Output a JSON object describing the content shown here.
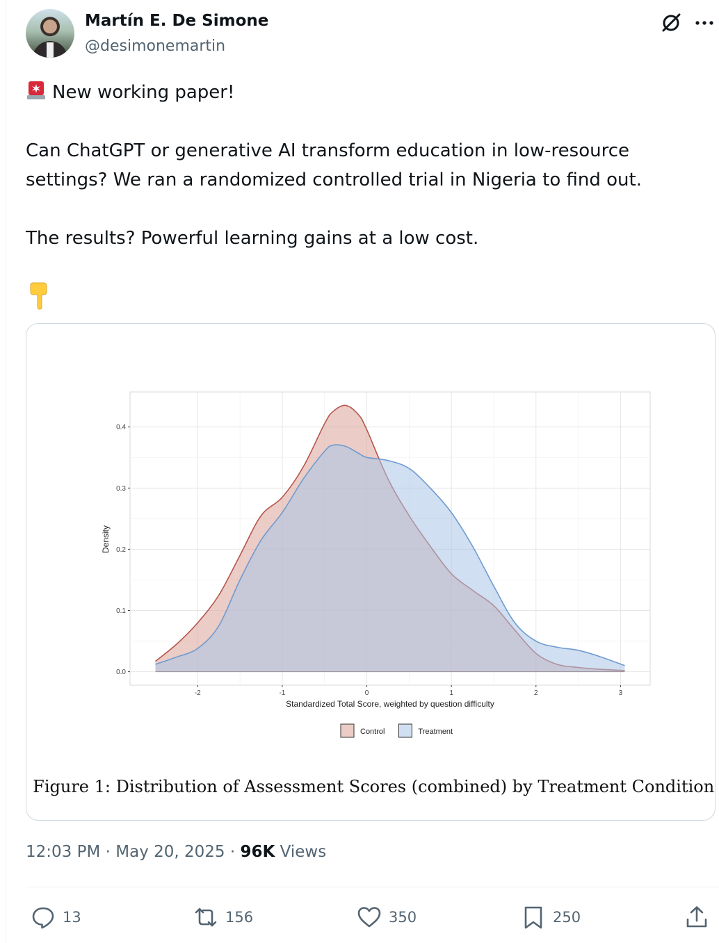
{
  "author": {
    "name": "Martín E. De Simone",
    "handle": "@desimonemartin"
  },
  "tweet": {
    "lines": [
      "New working paper!",
      "",
      "Can ChatGPT or generative AI transform education in low-resource",
      "settings? We ran a randomized controlled trial in Nigeria to find out.",
      "",
      "The results? Powerful learning gains at a low cost."
    ],
    "emojis": [
      "siren-emoji",
      "pointing-down-emoji"
    ]
  },
  "figure": {
    "caption": "Figure 1: Distribution of Assessment Scores (combined) by Treatment Condition."
  },
  "chart_data": {
    "type": "area",
    "xlabel": "Standardized Total Score, weighted by question difficulty",
    "ylabel": "Density",
    "xlim": [
      -2.8,
      3.35
    ],
    "ylim": [
      -0.022,
      0.457
    ],
    "xticks": [
      -2,
      -1,
      0,
      1,
      2,
      3
    ],
    "yticks": [
      0.0,
      0.1,
      0.2,
      0.3,
      0.4
    ],
    "xtick_labels": [
      "-2",
      "-1",
      "0",
      "1",
      "2",
      "3"
    ],
    "ytick_labels": [
      "0.0",
      "0.1",
      "0.2",
      "0.3",
      "0.4"
    ],
    "grid": true,
    "legend_position": "bottom",
    "series": [
      {
        "name": "Control",
        "fill": "#dba399",
        "stroke": "#b5564c",
        "x": [
          -2.5,
          -2.25,
          -2.0,
          -1.75,
          -1.5,
          -1.25,
          -1.0,
          -0.75,
          -0.5,
          -0.4,
          -0.25,
          -0.1,
          0.0,
          0.25,
          0.5,
          0.75,
          1.0,
          1.25,
          1.5,
          1.75,
          2.0,
          2.25,
          2.5,
          2.75,
          3.05
        ],
        "y": [
          0.017,
          0.045,
          0.08,
          0.125,
          0.19,
          0.255,
          0.285,
          0.335,
          0.405,
          0.425,
          0.435,
          0.42,
          0.395,
          0.315,
          0.255,
          0.205,
          0.16,
          0.133,
          0.108,
          0.068,
          0.03,
          0.012,
          0.007,
          0.004,
          0.002
        ]
      },
      {
        "name": "Treatment",
        "fill": "#a9c4e6",
        "stroke": "#6f9bd0",
        "x": [
          -2.5,
          -2.25,
          -2.0,
          -1.75,
          -1.5,
          -1.25,
          -1.0,
          -0.75,
          -0.5,
          -0.4,
          -0.25,
          -0.1,
          0.0,
          0.25,
          0.5,
          0.75,
          1.0,
          1.25,
          1.5,
          1.75,
          2.0,
          2.25,
          2.5,
          2.75,
          3.05
        ],
        "y": [
          0.012,
          0.024,
          0.038,
          0.075,
          0.15,
          0.215,
          0.26,
          0.315,
          0.36,
          0.37,
          0.368,
          0.357,
          0.35,
          0.345,
          0.332,
          0.3,
          0.26,
          0.205,
          0.14,
          0.08,
          0.05,
          0.04,
          0.035,
          0.025,
          0.01
        ]
      }
    ]
  },
  "post_meta": {
    "time": "12:03 PM",
    "separator": "·",
    "date": "May 20, 2025",
    "views_count": "96K",
    "views_label": "Views"
  },
  "actions": {
    "replies": "13",
    "reposts": "156",
    "likes": "350",
    "bookmarks": "250"
  },
  "colors": {
    "text_primary": "#0f1419",
    "text_secondary": "#536471",
    "border": "#cfd9de",
    "siren_red": "#d8283a",
    "pointing_yellow": "#ffcc3e"
  }
}
